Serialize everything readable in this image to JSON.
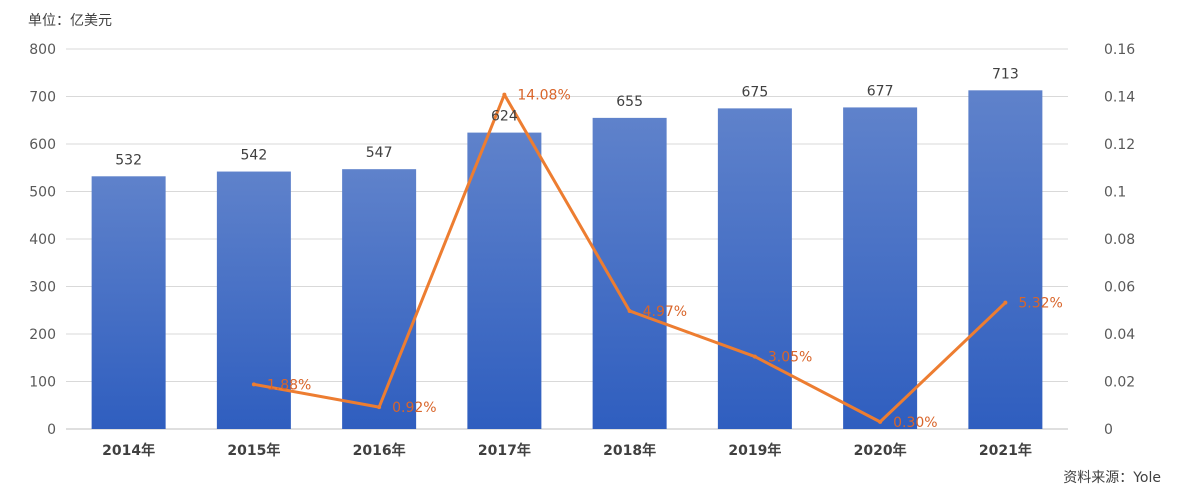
{
  "unit_label": "单位：亿美元",
  "source_label": "资料来源：Yole",
  "chart_data": {
    "type": "bar",
    "categories": [
      "2014年",
      "2015年",
      "2016年",
      "2017年",
      "2018年",
      "2019年",
      "2020年",
      "2021年"
    ],
    "series": [
      {
        "type": "bar",
        "values": [
          532,
          542,
          547,
          624,
          655,
          675,
          677,
          713
        ],
        "data_labels": [
          "532",
          "542",
          "547",
          "624",
          "655",
          "675",
          "677",
          "713"
        ],
        "axis": "left",
        "color": "#4472C4"
      },
      {
        "type": "line",
        "values": [
          null,
          0.0188,
          0.0092,
          0.1408,
          0.0497,
          0.0305,
          0.003,
          0.0532
        ],
        "data_labels": [
          null,
          "1.88%",
          "0.92%",
          "14.08%",
          "4.97%",
          "3.05%",
          "0.30%",
          "5.32%"
        ],
        "axis": "right",
        "color": "#ED7D31"
      }
    ],
    "y_left": {
      "min": 0,
      "max": 800,
      "ticks": [
        0,
        100,
        200,
        300,
        400,
        500,
        600,
        700,
        800
      ]
    },
    "y_right": {
      "min": 0,
      "max": 0.16,
      "ticks": [
        "0",
        "0.02",
        "0.04",
        "0.06",
        "0.08",
        "0.1",
        "0.12",
        "0.14",
        "0.16"
      ]
    },
    "grid": true,
    "legend": "none"
  }
}
